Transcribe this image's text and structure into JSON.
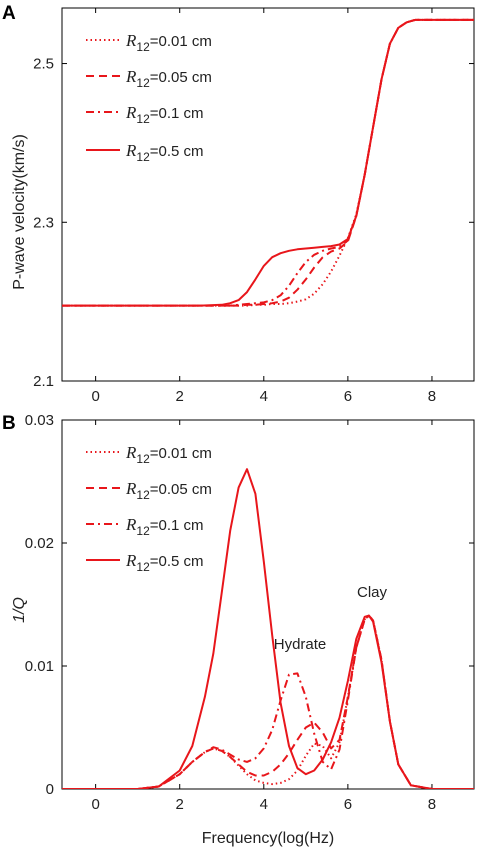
{
  "panel_a": {
    "letter": "A",
    "ylabel": "P-wave velocity(km/s)",
    "legend": [
      {
        "sym": "R",
        "sub": "12",
        "text": "=0.01 cm"
      },
      {
        "sym": "R",
        "sub": "12",
        "text": "=0.05 cm"
      },
      {
        "sym": "R",
        "sub": "12",
        "text": "=0.1 cm"
      },
      {
        "sym": "R",
        "sub": "12",
        "text": "=0.5 cm"
      }
    ]
  },
  "panel_b": {
    "letter": "B",
    "ylabel": "1/Q",
    "xlabel": "Frequency(log(Hz)",
    "legend": [
      {
        "sym": "R",
        "sub": "12",
        "text": "=0.01 cm"
      },
      {
        "sym": "R",
        "sub": "12",
        "text": "=0.05 cm"
      },
      {
        "sym": "R",
        "sub": "12",
        "text": "=0.1 cm"
      },
      {
        "sym": "R",
        "sub": "12",
        "text": "=0.5 cm"
      }
    ],
    "annotations": [
      "Hydrate",
      "Clay"
    ]
  },
  "chart_data": [
    {
      "type": "line",
      "panel": "A",
      "title": "",
      "xlabel": "",
      "ylabel": "P-wave velocity(km/s)",
      "xlim": [
        -0.8,
        9
      ],
      "ylim": [
        2.1,
        2.57
      ],
      "xticks": [
        0,
        2,
        4,
        6,
        8
      ],
      "yticks": [
        2.1,
        2.3,
        2.5
      ],
      "ytick_labels": [
        "2.1",
        "2.3",
        "2.5"
      ],
      "grid": false,
      "legend_position": "top-left",
      "color": "#e8161b",
      "x": [
        -0.8,
        0,
        1,
        2,
        2.5,
        3,
        3.2,
        3.4,
        3.6,
        3.8,
        4,
        4.2,
        4.4,
        4.6,
        4.8,
        5,
        5.2,
        5.4,
        5.6,
        5.8,
        6,
        6.2,
        6.4,
        6.6,
        6.8,
        7,
        7.2,
        7.4,
        7.6,
        8,
        8.5,
        9
      ],
      "series": [
        {
          "name": "R12=0.01 cm",
          "style": "dotted",
          "values": [
            2.195,
            2.195,
            2.195,
            2.195,
            2.195,
            2.195,
            2.195,
            2.195,
            2.195,
            2.196,
            2.196,
            2.197,
            2.197,
            2.198,
            2.2,
            2.203,
            2.21,
            2.222,
            2.238,
            2.258,
            2.28,
            2.31,
            2.36,
            2.42,
            2.48,
            2.525,
            2.545,
            2.552,
            2.555,
            2.555,
            2.555,
            2.555
          ]
        },
        {
          "name": "R12=0.05 cm",
          "style": "dashed",
          "values": [
            2.195,
            2.195,
            2.195,
            2.195,
            2.195,
            2.195,
            2.195,
            2.195,
            2.196,
            2.196,
            2.197,
            2.198,
            2.2,
            2.205,
            2.215,
            2.228,
            2.243,
            2.256,
            2.263,
            2.267,
            2.276,
            2.308,
            2.36,
            2.42,
            2.48,
            2.525,
            2.545,
            2.552,
            2.555,
            2.555,
            2.555,
            2.555
          ]
        },
        {
          "name": "R12=0.1 cm",
          "style": "dashdot",
          "values": [
            2.195,
            2.195,
            2.195,
            2.195,
            2.195,
            2.195,
            2.195,
            2.196,
            2.197,
            2.198,
            2.199,
            2.202,
            2.208,
            2.22,
            2.236,
            2.25,
            2.259,
            2.264,
            2.267,
            2.269,
            2.277,
            2.308,
            2.36,
            2.42,
            2.48,
            2.525,
            2.545,
            2.552,
            2.555,
            2.555,
            2.555,
            2.555
          ]
        },
        {
          "name": "R12=0.5 cm",
          "style": "solid",
          "values": [
            2.195,
            2.195,
            2.195,
            2.195,
            2.195,
            2.196,
            2.198,
            2.202,
            2.212,
            2.228,
            2.245,
            2.256,
            2.261,
            2.264,
            2.266,
            2.267,
            2.268,
            2.269,
            2.27,
            2.272,
            2.279,
            2.308,
            2.36,
            2.42,
            2.48,
            2.525,
            2.545,
            2.552,
            2.555,
            2.555,
            2.555,
            2.555
          ]
        }
      ]
    },
    {
      "type": "line",
      "panel": "B",
      "title": "",
      "xlabel": "Frequency(log(Hz)",
      "ylabel": "1/Q",
      "xlim": [
        -0.8,
        9
      ],
      "ylim": [
        0,
        0.03
      ],
      "xticks": [
        0,
        2,
        4,
        6,
        8
      ],
      "yticks": [
        0,
        0.01,
        0.02,
        0.03
      ],
      "ytick_labels": [
        "0",
        "0.01",
        "0.02",
        "0.03"
      ],
      "grid": false,
      "legend_position": "top-left",
      "color": "#e8161b",
      "x": [
        -0.8,
        0,
        1,
        1.5,
        2,
        2.3,
        2.6,
        2.8,
        3,
        3.2,
        3.4,
        3.6,
        3.8,
        4,
        4.2,
        4.4,
        4.6,
        4.8,
        5,
        5.2,
        5.4,
        5.6,
        5.8,
        6,
        6.2,
        6.4,
        6.5,
        6.6,
        6.8,
        7,
        7.2,
        7.5,
        8,
        9
      ],
      "series": [
        {
          "name": "R12=0.01 cm",
          "style": "dotted",
          "values": [
            0,
            0,
            0,
            0.0002,
            0.0012,
            0.0022,
            0.003,
            0.0033,
            0.0031,
            0.0026,
            0.0019,
            0.0012,
            0.0007,
            0.0005,
            0.0004,
            0.0005,
            0.0008,
            0.0015,
            0.0027,
            0.0037,
            0.0035,
            0.0025,
            0.0038,
            0.0075,
            0.0115,
            0.0138,
            0.0141,
            0.0137,
            0.0105,
            0.0055,
            0.002,
            0.0003,
            0,
            0
          ]
        },
        {
          "name": "R12=0.05 cm",
          "style": "dashed",
          "values": [
            0,
            0,
            0,
            0.0002,
            0.0012,
            0.0022,
            0.003,
            0.0033,
            0.0031,
            0.0026,
            0.002,
            0.0014,
            0.0011,
            0.0011,
            0.0014,
            0.002,
            0.0029,
            0.004,
            0.005,
            0.0054,
            0.0046,
            0.0033,
            0.004,
            0.0075,
            0.0115,
            0.0138,
            0.0141,
            0.0137,
            0.0105,
            0.0055,
            0.002,
            0.0003,
            0,
            0
          ]
        },
        {
          "name": "R12=0.1 cm",
          "style": "dashdot",
          "values": [
            0,
            0,
            0,
            0.0002,
            0.0012,
            0.0022,
            0.003,
            0.0034,
            0.0032,
            0.0028,
            0.0024,
            0.0022,
            0.0025,
            0.0033,
            0.0048,
            0.0072,
            0.0093,
            0.0094,
            0.0075,
            0.0045,
            0.0022,
            0.0016,
            0.0032,
            0.0072,
            0.0115,
            0.0138,
            0.0141,
            0.0137,
            0.0105,
            0.0055,
            0.002,
            0.0003,
            0,
            0
          ]
        },
        {
          "name": "R12=0.5 cm",
          "style": "solid",
          "values": [
            0,
            0,
            0,
            0.0002,
            0.0015,
            0.0035,
            0.0075,
            0.011,
            0.016,
            0.021,
            0.0245,
            0.026,
            0.024,
            0.0185,
            0.0125,
            0.007,
            0.0035,
            0.0017,
            0.0012,
            0.0015,
            0.0024,
            0.0038,
            0.0058,
            0.0088,
            0.0122,
            0.014,
            0.0141,
            0.0136,
            0.0103,
            0.0055,
            0.002,
            0.0003,
            0,
            0
          ]
        }
      ]
    }
  ]
}
